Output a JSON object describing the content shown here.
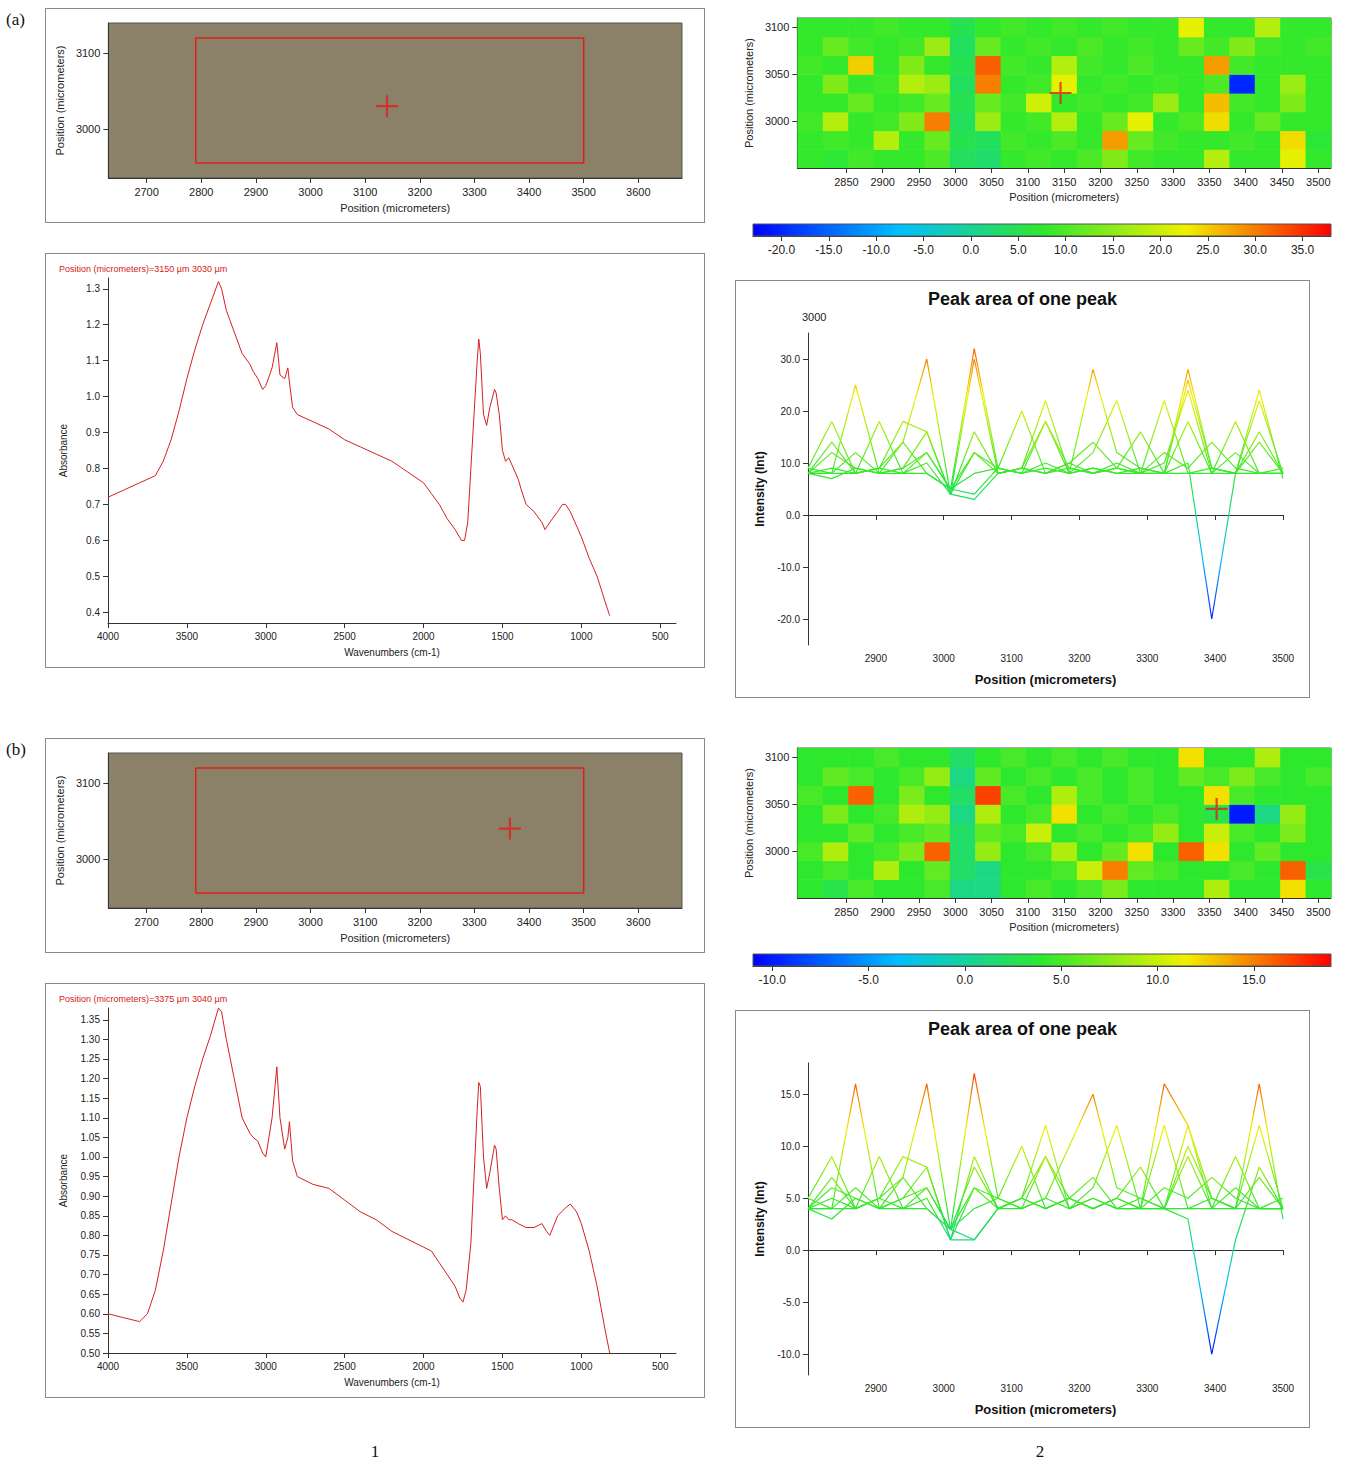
{
  "figure": {
    "row_labels": [
      "(a)",
      "(b)"
    ],
    "column_labels": [
      "1",
      "2"
    ]
  },
  "chart_data": [
    {
      "type": "micrograph",
      "x_label": "Position (micrometers)",
      "y_label": "Position (micrometers)",
      "xlim": [
        2630,
        3680
      ],
      "xticks": [
        2700,
        2800,
        2900,
        3000,
        3100,
        3200,
        3300,
        3400,
        3500,
        3600
      ],
      "ylim": [
        2935,
        3140
      ],
      "yticks": [
        3000,
        3100
      ],
      "rectangle": {
        "x": [
          2790,
          3500
        ],
        "y": [
          2955,
          3120
        ]
      },
      "cross": [
        3140,
        3030
      ],
      "color": "#e0201c"
    },
    {
      "type": "line",
      "title": "Position (micrometers)=3150 µm 3030 µm",
      "x_label": "Wavenumbers (cm-1)",
      "y_label": "Absorbance",
      "xlim": [
        4000,
        400
      ],
      "xticks": [
        4000,
        3500,
        3000,
        2500,
        2000,
        1500,
        1000,
        500
      ],
      "ylim": [
        0.37,
        1.33
      ],
      "yticks": [
        0.4,
        0.5,
        0.6,
        0.7,
        0.8,
        0.9,
        {
          "value": 1,
          "label": "1.0"
        },
        1.1,
        1.2,
        1.3
      ],
      "x": [
        4000,
        3900,
        3800,
        3700,
        3650,
        3600,
        3550,
        3500,
        3450,
        3400,
        3350,
        3300,
        3280,
        3250,
        3200,
        3150,
        3100,
        3080,
        3050,
        3020,
        3000,
        2960,
        2930,
        2910,
        2880,
        2860,
        2850,
        2830,
        2800,
        2750,
        2700,
        2600,
        2500,
        2400,
        2300,
        2200,
        2100,
        2000,
        1950,
        1900,
        1850,
        1800,
        1760,
        1740,
        1720,
        1700,
        1680,
        1660,
        1650,
        1640,
        1620,
        1600,
        1580,
        1550,
        1540,
        1520,
        1500,
        1480,
        1460,
        1440,
        1420,
        1400,
        1380,
        1350,
        1300,
        1250,
        1230,
        1200,
        1150,
        1120,
        1100,
        1070,
        1050,
        1030,
        1000,
        950,
        900,
        850,
        820
      ],
      "values": [
        0.72,
        0.74,
        0.76,
        0.78,
        0.82,
        0.88,
        0.96,
        1.05,
        1.13,
        1.2,
        1.26,
        1.32,
        1.3,
        1.24,
        1.18,
        1.12,
        1.09,
        1.07,
        1.05,
        1.02,
        1.03,
        1.08,
        1.15,
        1.06,
        1.05,
        1.08,
        1.04,
        0.97,
        0.95,
        0.94,
        0.93,
        0.91,
        0.88,
        0.86,
        0.84,
        0.82,
        0.79,
        0.76,
        0.73,
        0.7,
        0.66,
        0.63,
        0.6,
        0.6,
        0.65,
        0.8,
        0.95,
        1.1,
        1.16,
        1.12,
        0.95,
        0.92,
        0.97,
        1.02,
        1.01,
        0.95,
        0.85,
        0.82,
        0.83,
        0.81,
        0.79,
        0.77,
        0.74,
        0.7,
        0.68,
        0.65,
        0.63,
        0.65,
        0.68,
        0.7,
        0.7,
        0.68,
        0.66,
        0.64,
        0.61,
        0.55,
        0.5,
        0.43,
        0.39
      ],
      "color": "#d62020"
    },
    {
      "type": "heatmap",
      "x_label": "Position (micrometers)",
      "y_label": "Position (micrometers)",
      "xlim": [
        2782.5,
        3517.5
      ],
      "xticks": [
        2850,
        2900,
        2950,
        3000,
        3050,
        3100,
        3150,
        3200,
        3250,
        3300,
        3350,
        3400,
        3450,
        3500
      ],
      "ylim": [
        2950,
        3110
      ],
      "yticks": [
        3000,
        3050,
        3100
      ],
      "x": [
        2800,
        2835,
        2870,
        2905,
        2940,
        2975,
        3010,
        3045,
        3080,
        3115,
        3150,
        3185,
        3220,
        3255,
        3290,
        3325,
        3360,
        3395,
        3430,
        3465,
        3500
      ],
      "y": [
        2960,
        2980,
        3000,
        3020,
        3040,
        3060,
        3080,
        3100
      ],
      "cells": [
        [
          8,
          7,
          9,
          8,
          8,
          10,
          4,
          3,
          8,
          9,
          8,
          10,
          14,
          9,
          8,
          8,
          18,
          8,
          8,
          22,
          8
        ],
        [
          8,
          9,
          8,
          18,
          8,
          12,
          5,
          4,
          9,
          8,
          10,
          8,
          28,
          12,
          9,
          8,
          8,
          9,
          8,
          24,
          7
        ],
        [
          9,
          18,
          8,
          9,
          14,
          30,
          4,
          16,
          8,
          9,
          18,
          8,
          12,
          22,
          8,
          10,
          24,
          8,
          12,
          8,
          8
        ],
        [
          8,
          8,
          12,
          8,
          9,
          12,
          5,
          12,
          9,
          20,
          8,
          9,
          8,
          9,
          16,
          8,
          26,
          9,
          8,
          14,
          8
        ],
        [
          8,
          14,
          8,
          9,
          18,
          16,
          4,
          30,
          8,
          9,
          22,
          8,
          9,
          8,
          9,
          8,
          10,
          -20,
          8,
          16,
          8
        ],
        [
          9,
          8,
          25,
          8,
          14,
          8,
          5,
          32,
          9,
          8,
          18,
          9,
          8,
          10,
          8,
          8,
          28,
          9,
          8,
          8,
          8
        ],
        [
          8,
          12,
          9,
          8,
          9,
          16,
          4,
          12,
          8,
          9,
          8,
          10,
          8,
          9,
          8,
          12,
          9,
          14,
          9,
          8,
          9
        ],
        [
          8,
          8,
          8,
          9,
          8,
          8,
          5,
          8,
          9,
          8,
          9,
          8,
          9,
          8,
          8,
          22,
          8,
          8,
          18,
          8,
          8
        ]
      ],
      "colorbar": {
        "range": [
          -23,
          38
        ],
        "ticks": [
          {
            "value": -20,
            "label": "-20.0"
          },
          {
            "value": -15,
            "label": "-15.0"
          },
          {
            "value": -10,
            "label": "-10.0"
          },
          {
            "value": -5,
            "label": "-5.0"
          },
          {
            "value": 0,
            "label": "0.0"
          },
          {
            "value": 5,
            "label": "5.0"
          },
          {
            "value": 10,
            "label": "10.0"
          },
          {
            "value": 15,
            "label": "15.0"
          },
          {
            "value": 20,
            "label": "20.0"
          },
          {
            "value": 25,
            "label": "25.0"
          },
          {
            "value": 30,
            "label": "30.0"
          },
          {
            "value": 35,
            "label": "35.0"
          }
        ]
      },
      "cross": [
        3145,
        3030
      ],
      "surface": {
        "title": "Peak area of one peak",
        "x_label": "Position (micrometers)",
        "y_label": "Intensity (Int)",
        "xlim": [
          2800,
          3500
        ],
        "xticks": [
          2900,
          3000,
          3100,
          3200,
          3300,
          3400,
          3500
        ],
        "ylim": [
          -25,
          35
        ],
        "yticks": [
          {
            "value": -20,
            "label": "-20.0"
          },
          {
            "value": -10,
            "label": "-10.0"
          },
          {
            "value": 0,
            "label": "0.0"
          },
          {
            "value": 10,
            "label": "10.0"
          },
          {
            "value": 20,
            "label": "20.0"
          },
          {
            "value": 30,
            "label": "30.0"
          }
        ],
        "depth_ticks": [
          3000
        ]
      }
    },
    {
      "type": "micrograph",
      "x_label": "Position (micrometers)",
      "y_label": "Position (micrometers)",
      "xlim": [
        2630,
        3680
      ],
      "xticks": [
        2700,
        2800,
        2900,
        3000,
        3100,
        3200,
        3300,
        3400,
        3500,
        3600
      ],
      "ylim": [
        2935,
        3140
      ],
      "yticks": [
        3000,
        3100
      ],
      "rectangle": {
        "x": [
          2790,
          3500
        ],
        "y": [
          2955,
          3120
        ]
      },
      "cross": [
        3365,
        3040
      ],
      "color": "#e0201c"
    },
    {
      "type": "line",
      "title": "Position (micrometers)=3375 µm 3040 µm",
      "x_label": "Wavenumbers (cm-1)",
      "y_label": "Absorbance",
      "xlim": [
        4000,
        400
      ],
      "xticks": [
        4000,
        3500,
        3000,
        2500,
        2000,
        1500,
        1000,
        500
      ],
      "ylim": [
        0.5,
        1.38
      ],
      "yticks": [
        {
          "value": 0.5,
          "label": "0.50"
        },
        0.55,
        {
          "value": 0.6,
          "label": "0.60"
        },
        0.65,
        {
          "value": 0.7,
          "label": "0.70"
        },
        0.75,
        {
          "value": 0.8,
          "label": "0.80"
        },
        0.85,
        {
          "value": 0.9,
          "label": "0.90"
        },
        0.95,
        {
          "value": 1,
          "label": "1.00"
        },
        1.05,
        {
          "value": 1.1,
          "label": "1.10"
        },
        1.15,
        {
          "value": 1.2,
          "label": "1.20"
        },
        1.25,
        {
          "value": 1.3,
          "label": "1.30"
        },
        1.35
      ],
      "x": [
        4000,
        3900,
        3800,
        3750,
        3700,
        3650,
        3600,
        3550,
        3500,
        3450,
        3400,
        3350,
        3300,
        3280,
        3250,
        3200,
        3150,
        3100,
        3080,
        3050,
        3020,
        3000,
        2960,
        2930,
        2910,
        2880,
        2860,
        2850,
        2830,
        2800,
        2700,
        2600,
        2500,
        2400,
        2300,
        2200,
        2100,
        2000,
        1950,
        1900,
        1850,
        1800,
        1770,
        1750,
        1730,
        1700,
        1680,
        1660,
        1650,
        1640,
        1620,
        1600,
        1580,
        1550,
        1540,
        1520,
        1500,
        1480,
        1460,
        1440,
        1400,
        1350,
        1300,
        1250,
        1220,
        1200,
        1180,
        1150,
        1100,
        1070,
        1050,
        1030,
        1000,
        950,
        900,
        850,
        820
      ],
      "values": [
        0.6,
        0.59,
        0.58,
        0.6,
        0.66,
        0.76,
        0.88,
        1.0,
        1.1,
        1.18,
        1.25,
        1.31,
        1.38,
        1.37,
        1.3,
        1.2,
        1.1,
        1.06,
        1.05,
        1.04,
        1.01,
        1.0,
        1.1,
        1.23,
        1.1,
        1.02,
        1.05,
        1.09,
        0.99,
        0.95,
        0.93,
        0.92,
        0.89,
        0.86,
        0.84,
        0.81,
        0.79,
        0.77,
        0.76,
        0.73,
        0.7,
        0.67,
        0.64,
        0.63,
        0.66,
        0.78,
        0.95,
        1.12,
        1.19,
        1.18,
        1.0,
        0.92,
        0.96,
        1.03,
        1.02,
        0.92,
        0.84,
        0.85,
        0.84,
        0.84,
        0.83,
        0.82,
        0.82,
        0.83,
        0.81,
        0.8,
        0.82,
        0.85,
        0.87,
        0.88,
        0.87,
        0.86,
        0.83,
        0.76,
        0.67,
        0.56,
        0.5
      ],
      "color": "#d62020"
    },
    {
      "type": "heatmap",
      "x_label": "Position (micrometers)",
      "y_label": "Position (micrometers)",
      "xlim": [
        2782.5,
        3517.5
      ],
      "xticks": [
        2850,
        2900,
        2950,
        3000,
        3050,
        3100,
        3150,
        3200,
        3250,
        3300,
        3350,
        3400,
        3450,
        3500
      ],
      "ylim": [
        2950,
        3110
      ],
      "yticks": [
        3000,
        3050,
        3100
      ],
      "x": [
        2800,
        2835,
        2870,
        2905,
        2940,
        2975,
        3010,
        3045,
        3080,
        3115,
        3150,
        3185,
        3220,
        3255,
        3290,
        3325,
        3360,
        3395,
        3430,
        3465,
        3500
      ],
      "y": [
        2960,
        2980,
        3000,
        3020,
        3040,
        3060,
        3080,
        3100
      ],
      "cells": [
        [
          4,
          3,
          5,
          4,
          4,
          5,
          1,
          1,
          4,
          5,
          4,
          5,
          7,
          4,
          4,
          4,
          9,
          4,
          4,
          12,
          4
        ],
        [
          4,
          5,
          4,
          9,
          4,
          6,
          2,
          1,
          4,
          4,
          5,
          10,
          15,
          6,
          5,
          4,
          4,
          5,
          4,
          16,
          3
        ],
        [
          5,
          9,
          4,
          5,
          7,
          16,
          2,
          8,
          4,
          5,
          9,
          4,
          6,
          12,
          4,
          16,
          12,
          4,
          6,
          4,
          4
        ],
        [
          4,
          4,
          6,
          4,
          5,
          6,
          2,
          6,
          5,
          10,
          4,
          5,
          4,
          5,
          8,
          4,
          10,
          5,
          4,
          7,
          4
        ],
        [
          4,
          7,
          4,
          5,
          9,
          8,
          1,
          9,
          4,
          5,
          12,
          4,
          5,
          4,
          5,
          4,
          3,
          -10,
          1,
          8,
          4
        ],
        [
          5,
          4,
          16,
          4,
          7,
          4,
          2,
          17,
          5,
          4,
          9,
          5,
          4,
          5,
          4,
          4,
          12,
          5,
          4,
          4,
          4
        ],
        [
          4,
          6,
          5,
          4,
          5,
          8,
          1,
          6,
          4,
          5,
          4,
          5,
          4,
          5,
          4,
          6,
          5,
          7,
          5,
          4,
          5
        ],
        [
          4,
          4,
          4,
          5,
          4,
          4,
          2,
          4,
          5,
          4,
          5,
          4,
          5,
          4,
          4,
          12,
          4,
          4,
          9,
          4,
          4
        ]
      ],
      "colorbar": {
        "range": [
          -11,
          19
        ],
        "ticks": [
          {
            "value": -10,
            "label": "-10.0"
          },
          {
            "value": -5,
            "label": "-5.0"
          },
          {
            "value": 0,
            "label": "0.0"
          },
          {
            "value": 5,
            "label": "5.0"
          },
          {
            "value": 10,
            "label": "10.0"
          },
          {
            "value": 15,
            "label": "15.0"
          }
        ]
      },
      "cross": [
        3360,
        3045
      ],
      "surface": {
        "title": "Peak area of one peak",
        "x_label": "Position (micrometers)",
        "y_label": "Intensity (Int)",
        "xlim": [
          2800,
          3500
        ],
        "xticks": [
          2900,
          3000,
          3100,
          3200,
          3300,
          3400,
          3500
        ],
        "ylim": [
          -12,
          18
        ],
        "yticks": [
          {
            "value": -10,
            "label": "-10.0"
          },
          {
            "value": -5,
            "label": "-5.0"
          },
          {
            "value": 0,
            "label": "0.0"
          },
          {
            "value": 5,
            "label": "5.0"
          },
          {
            "value": 10,
            "label": "10.0"
          },
          {
            "value": 15,
            "label": "15.0"
          }
        ]
      }
    }
  ]
}
